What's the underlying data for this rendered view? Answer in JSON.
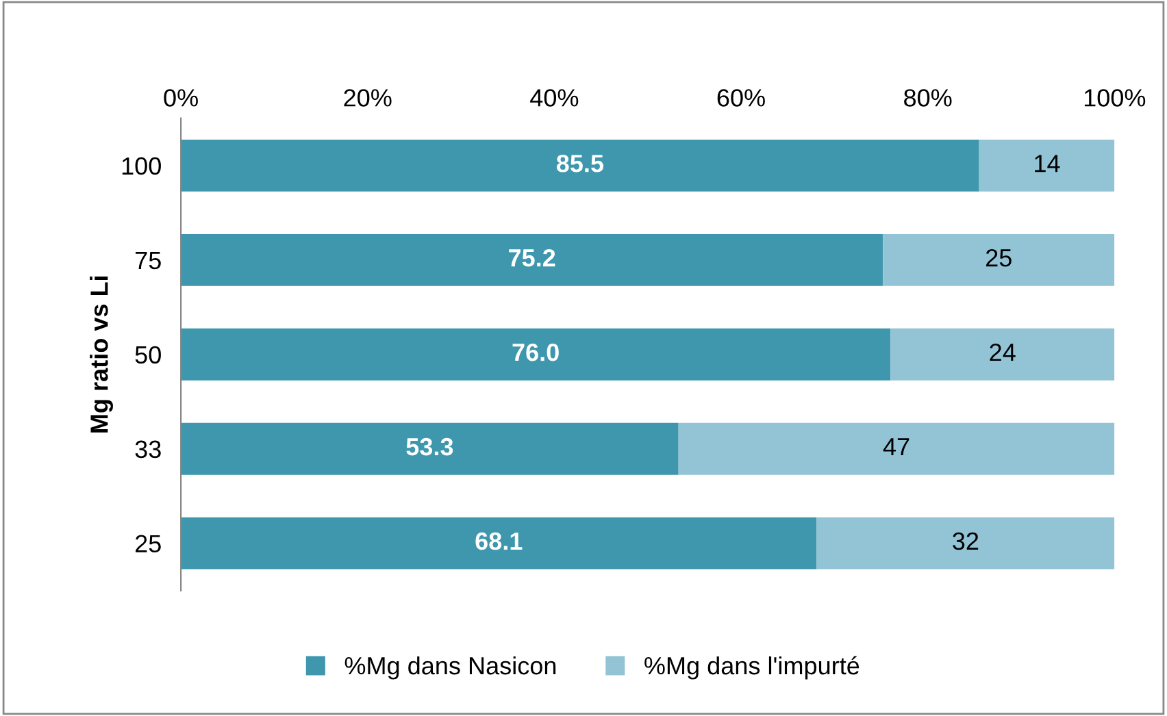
{
  "chart_data": {
    "type": "bar",
    "orientation": "horizontal",
    "stacked": true,
    "ylabel": "Mg ratio vs Li",
    "categories": [
      "100",
      "75",
      "50",
      "33",
      "25"
    ],
    "series": [
      {
        "name": "%Mg dans Nasicon",
        "color": "#3f97ae",
        "values": [
          85.5,
          75.2,
          76.0,
          53.3,
          68.1
        ],
        "value_labels": [
          "85.5",
          "75.2",
          "76.0",
          "53.3",
          "68.1"
        ]
      },
      {
        "name": "%Mg dans l'impurté",
        "color": "#93c4d6",
        "values": [
          14.5,
          24.8,
          24.0,
          46.7,
          31.9
        ],
        "value_labels": [
          "14",
          "25",
          "24",
          "47",
          "32"
        ]
      }
    ],
    "xlim": [
      0,
      100
    ],
    "xticks": [
      {
        "value": 0,
        "label": "0%"
      },
      {
        "value": 20,
        "label": "20%"
      },
      {
        "value": 40,
        "label": "40%"
      },
      {
        "value": 60,
        "label": "60%"
      },
      {
        "value": 80,
        "label": "80%"
      },
      {
        "value": 100,
        "label": "100%"
      }
    ],
    "grid": false,
    "legend": "bottom"
  }
}
